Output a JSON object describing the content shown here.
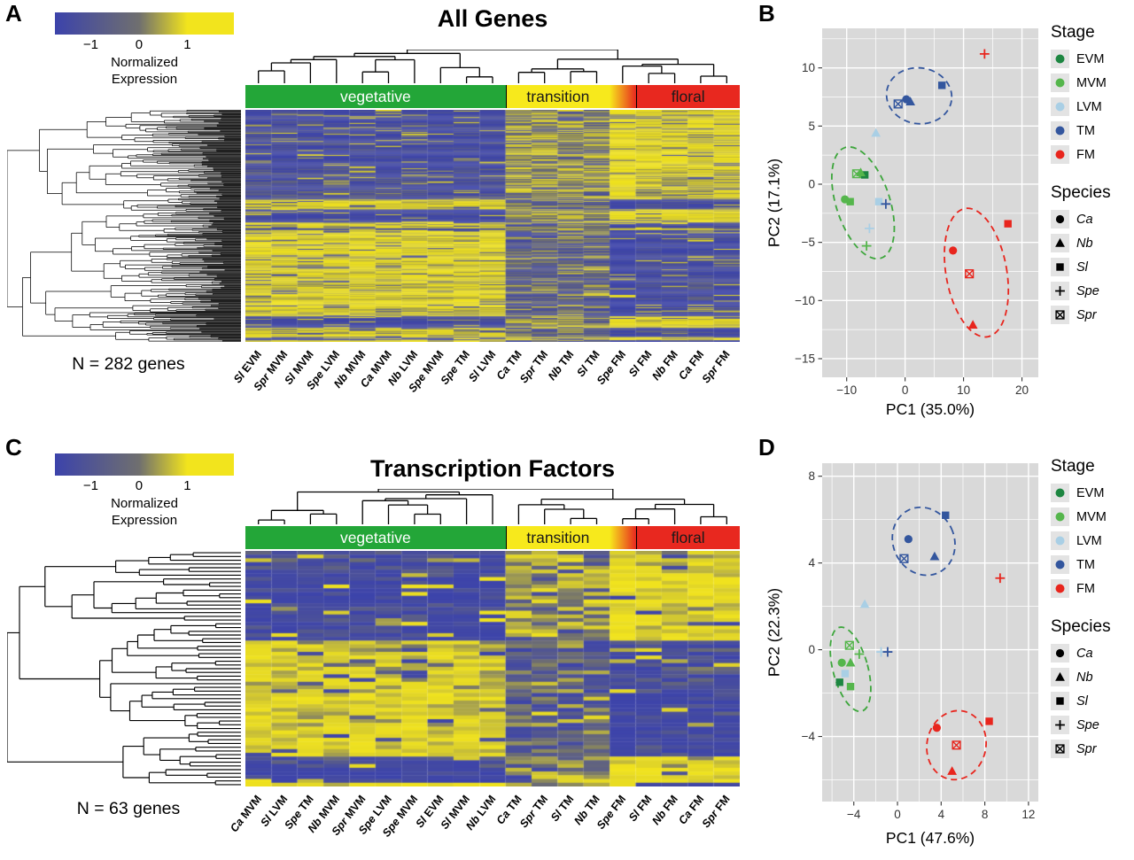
{
  "figure": {
    "panel_labels": [
      "A",
      "B",
      "C",
      "D"
    ]
  },
  "colors": {
    "plot_bg": "#d9d9d9",
    "grid": "#ffffff",
    "dendrogram": "#000000",
    "tick": "#333333"
  },
  "legend": {
    "stage_title": "Stage",
    "stages": [
      {
        "label": "EVM",
        "color": "#1d8641"
      },
      {
        "label": "MVM",
        "color": "#55b64c"
      },
      {
        "label": "LVM",
        "color": "#a9cfe5"
      },
      {
        "label": "TM",
        "color": "#33569e"
      },
      {
        "label": "FM",
        "color": "#e8251d"
      }
    ],
    "species_title": "Species",
    "species": [
      {
        "label": "Ca",
        "shape": "circle"
      },
      {
        "label": "Nb",
        "shape": "triangle"
      },
      {
        "label": "Sl",
        "shape": "square"
      },
      {
        "label": "Spe",
        "shape": "plus"
      },
      {
        "label": "Spr",
        "shape": "boxed-x"
      }
    ]
  },
  "chart_data": [
    {
      "panel": "A",
      "type": "heatmap",
      "title": "All Genes",
      "n_genes": 282,
      "n_label": "N = 282 genes",
      "colorbar": {
        "label_lines": [
          "Normalized",
          "Expression"
        ],
        "tick_labels": [
          "−1",
          "0",
          "1"
        ],
        "low": "#3c43ab",
        "mid": "#6f6f6f",
        "high": "#f2e41d"
      },
      "groups": [
        {
          "label": "vegetative",
          "color": "#23a638",
          "text_color": "#ffffff",
          "n_cols": 10
        },
        {
          "label": "transition",
          "color": "#f7e91c",
          "text_color": "#1a1a1a",
          "n_cols": 4
        },
        {
          "label": "",
          "color_from": "#f7e91c",
          "color_to": "#e8281f",
          "n_cols": 1
        },
        {
          "label": "floral",
          "color": "#e8281f",
          "text_color": "#1a1a1a",
          "n_cols": 4
        }
      ],
      "columns": [
        "Sl EVM",
        "Spr MVM",
        "Sl MVM",
        "Spe LVM",
        "Nb MVM",
        "Ca MVM",
        "Nb LVM",
        "Spe MVM",
        "Spe TM",
        "Sl LVM",
        "Ca TM",
        "Spr TM",
        "Nb TM",
        "Sl TM",
        "Spe FM",
        "Sl FM",
        "Nb FM",
        "Ca FM",
        "Spr FM"
      ]
    },
    {
      "panel": "B",
      "type": "scatter",
      "xlabel": "PC1 (35.0%)",
      "ylabel": "PC2 (17.1%)",
      "xlim": [
        -14.2,
        22.8
      ],
      "ylim": [
        -16.6,
        13.4
      ],
      "xticks": [
        -10,
        0,
        10,
        20
      ],
      "yticks": [
        -15,
        -10,
        -5,
        0,
        5,
        10
      ],
      "points": [
        {
          "species": "Sl",
          "stage": "EVM",
          "x": -6.9,
          "y": 0.8
        },
        {
          "species": "Nb",
          "stage": "MVM",
          "x": -7.6,
          "y": 1.0
        },
        {
          "species": "Spr",
          "stage": "MVM",
          "x": -8.3,
          "y": 0.9
        },
        {
          "species": "Ca",
          "stage": "MVM",
          "x": -10.3,
          "y": -1.3
        },
        {
          "species": "Sl",
          "stage": "MVM",
          "x": -9.4,
          "y": -1.5
        },
        {
          "species": "Sl",
          "stage": "LVM",
          "x": -4.5,
          "y": -1.5
        },
        {
          "species": "Spe",
          "stage": "TM",
          "x": -3.3,
          "y": -1.7
        },
        {
          "species": "Spe",
          "stage": "LVM",
          "x": -6.1,
          "y": -3.8
        },
        {
          "species": "Spe",
          "stage": "MVM",
          "x": -6.6,
          "y": -5.3
        },
        {
          "species": "Nb",
          "stage": "LVM",
          "x": -5.0,
          "y": 4.4
        },
        {
          "species": "Spr",
          "stage": "TM",
          "x": -1.2,
          "y": 6.9
        },
        {
          "species": "Ca",
          "stage": "TM",
          "x": 0.2,
          "y": 7.3
        },
        {
          "species": "Nb",
          "stage": "TM",
          "x": 0.9,
          "y": 7.1
        },
        {
          "species": "Sl",
          "stage": "TM",
          "x": 6.3,
          "y": 8.5
        },
        {
          "species": "Spe",
          "stage": "FM",
          "x": 13.6,
          "y": 11.2
        },
        {
          "species": "Sl",
          "stage": "FM",
          "x": 17.6,
          "y": -3.4
        },
        {
          "species": "Ca",
          "stage": "FM",
          "x": 8.2,
          "y": -5.7
        },
        {
          "species": "Spr",
          "stage": "FM",
          "x": 11.0,
          "y": -7.7
        },
        {
          "species": "Nb",
          "stage": "FM",
          "x": 11.6,
          "y": -12.1
        }
      ],
      "ellipses": [
        {
          "group": "vegetative",
          "color": "#3da63c",
          "cx": -7.2,
          "cy": -1.6,
          "rx": 4.6,
          "ry": 5.0,
          "angle": -18
        },
        {
          "group": "transition",
          "color": "#33569e",
          "cx": 2.4,
          "cy": 7.6,
          "rx": 5.6,
          "ry": 2.4,
          "angle": 8
        },
        {
          "group": "floral",
          "color": "#e8251d",
          "cx": 12.2,
          "cy": -7.6,
          "rx": 5.2,
          "ry": 5.6,
          "angle": -10
        }
      ]
    },
    {
      "panel": "C",
      "type": "heatmap",
      "title": "Transcription Factors",
      "n_genes": 63,
      "n_label": "N = 63 genes",
      "colorbar": {
        "label_lines": [
          "Normalized",
          "Expression"
        ],
        "tick_labels": [
          "−1",
          "0",
          "1"
        ],
        "low": "#3c43ab",
        "mid": "#6f6f6f",
        "high": "#f2e41d"
      },
      "groups": [
        {
          "label": "vegetative",
          "color": "#23a638",
          "text_color": "#ffffff",
          "n_cols": 10
        },
        {
          "label": "transition",
          "color": "#f7e91c",
          "text_color": "#1a1a1a",
          "n_cols": 4
        },
        {
          "label": "",
          "color_from": "#f7e91c",
          "color_to": "#e8281f",
          "n_cols": 1
        },
        {
          "label": "floral",
          "color": "#e8281f",
          "text_color": "#1a1a1a",
          "n_cols": 4
        }
      ],
      "columns": [
        "Ca MVM",
        "Sl LVM",
        "Spe TM",
        "Nb MVM",
        "Spr MVM",
        "Spe LVM",
        "Spe MVM",
        "Sl EVM",
        "Sl MVM",
        "Nb LVM",
        "Ca TM",
        "Spr TM",
        "Sl TM",
        "Nb TM",
        "Spe FM",
        "Sl FM",
        "Nb FM",
        "Ca FM",
        "Spr FM"
      ]
    },
    {
      "panel": "D",
      "type": "scatter",
      "xlabel": "PC1 (47.6%)",
      "ylabel": "PC2 (22.3%)",
      "xlim": [
        -6.9,
        12.9
      ],
      "ylim": [
        -7.0,
        8.6
      ],
      "xticks": [
        -4,
        0,
        4,
        8,
        12
      ],
      "yticks": [
        -4,
        0,
        4,
        8
      ],
      "points": [
        {
          "species": "Spr",
          "stage": "MVM",
          "x": -4.4,
          "y": 0.2
        },
        {
          "species": "Ca",
          "stage": "MVM",
          "x": -5.1,
          "y": -0.6
        },
        {
          "species": "Nb",
          "stage": "MVM",
          "x": -4.3,
          "y": -0.6
        },
        {
          "species": "Sl",
          "stage": "EVM",
          "x": -5.3,
          "y": -1.5
        },
        {
          "species": "Sl",
          "stage": "MVM",
          "x": -4.3,
          "y": -1.7
        },
        {
          "species": "Sl",
          "stage": "LVM",
          "x": -4.8,
          "y": -1.1
        },
        {
          "species": "Spe",
          "stage": "MVM",
          "x": -3.5,
          "y": -0.2
        },
        {
          "species": "Nb",
          "stage": "LVM",
          "x": -3.0,
          "y": 2.1
        },
        {
          "species": "Spe",
          "stage": "LVM",
          "x": -1.5,
          "y": -0.1
        },
        {
          "species": "Spe",
          "stage": "TM",
          "x": -0.9,
          "y": -0.1
        },
        {
          "species": "Ca",
          "stage": "TM",
          "x": 1.0,
          "y": 5.1
        },
        {
          "species": "Sl",
          "stage": "TM",
          "x": 4.4,
          "y": 6.2
        },
        {
          "species": "Nb",
          "stage": "TM",
          "x": 3.4,
          "y": 4.3
        },
        {
          "species": "Spr",
          "stage": "TM",
          "x": 0.6,
          "y": 4.2
        },
        {
          "species": "Spe",
          "stage": "FM",
          "x": 9.4,
          "y": 3.3
        },
        {
          "species": "Ca",
          "stage": "FM",
          "x": 3.6,
          "y": -3.6
        },
        {
          "species": "Sl",
          "stage": "FM",
          "x": 8.4,
          "y": -3.3
        },
        {
          "species": "Spr",
          "stage": "FM",
          "x": 5.4,
          "y": -4.4
        },
        {
          "species": "Nb",
          "stage": "FM",
          "x": 5.0,
          "y": -5.6
        }
      ],
      "ellipses": [
        {
          "group": "vegetative",
          "color": "#3da63c",
          "cx": -4.3,
          "cy": -0.9,
          "rx": 1.6,
          "ry": 2.0,
          "angle": -15
        },
        {
          "group": "transition",
          "color": "#33569e",
          "cx": 2.4,
          "cy": 5.0,
          "rx": 2.8,
          "ry": 1.6,
          "angle": -25
        },
        {
          "group": "floral",
          "color": "#e8251d",
          "cx": 5.4,
          "cy": -4.4,
          "rx": 2.7,
          "ry": 1.6,
          "angle": 12
        }
      ]
    }
  ]
}
